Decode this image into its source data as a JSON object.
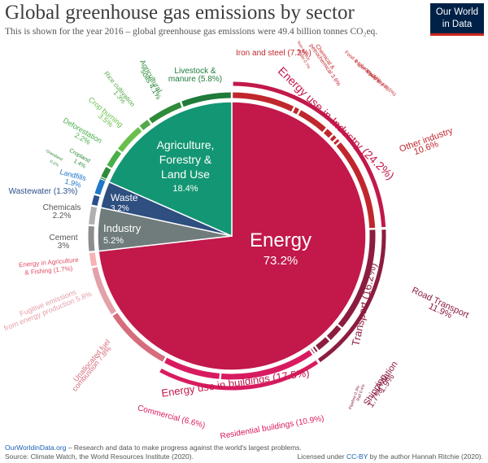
{
  "header": {
    "title": "Global greenhouse gas emissions by sector",
    "subtitle": "This is shown for the year 2016 – global greenhouse gas emissions were 49.4 billion tonnes CO₂eq.",
    "logo_line1": "Our World",
    "logo_line2": "in Data"
  },
  "footer": {
    "site": "OurWorldinData.org",
    "tagline": " – Research and data to make progress against the world's largest problems.",
    "source": "Source: Climate Watch, the World Resources Institute (2020).",
    "license_prefix": "Licensed under ",
    "license": "CC-BY",
    "license_suffix": " by the author Hannah Ritchie (2020)."
  },
  "chart_data": {
    "type": "pie",
    "year": 2016,
    "total": "49.4 billion tonnes CO₂eq",
    "sectors": [
      {
        "name": "Energy",
        "value": 73.2,
        "label": "73.2%",
        "color": "#c2184a"
      },
      {
        "name": "Industry",
        "value": 5.2,
        "label": "5.2%",
        "color": "#707b7c"
      },
      {
        "name": "Waste",
        "value": 3.2,
        "label": "3.2%",
        "color": "#2e4f7f"
      },
      {
        "name": "Agriculture, Forestry & Land Use",
        "value": 18.4,
        "label": "18.4%",
        "color": "#139673"
      }
    ],
    "groups": [
      {
        "name": "Energy use in Industry",
        "value": 24.2,
        "label": "(24.2%)",
        "color": "#c2184a"
      },
      {
        "name": "Transport",
        "value": 16.2,
        "label": "(16.2%)",
        "color": "#8c1d3f"
      },
      {
        "name": "Energy use in buildings",
        "value": 17.5,
        "label": "(17.5%)",
        "color": "#d81b60"
      }
    ],
    "subsectors": [
      {
        "name": "Iron and steel",
        "value": 7.2,
        "label": "(7.2%)",
        "color": "#c0272d"
      },
      {
        "name": "Non-ferrous metals",
        "value": 0.7,
        "label": "0.7%",
        "color": "#c0272d"
      },
      {
        "name": "Chemical & petrochemical",
        "value": 3.6,
        "label": "3.6%",
        "color": "#c0272d"
      },
      {
        "name": "Food & tobacco",
        "value": 1.0,
        "label": "(1%)",
        "color": "#c0272d"
      },
      {
        "name": "Paper & pulp",
        "value": 0.6,
        "label": "(0.6%)",
        "color": "#c0272d"
      },
      {
        "name": "Machinery",
        "value": 0.5,
        "label": "(0.5%)",
        "color": "#c0272d"
      },
      {
        "name": "Other industry",
        "value": 10.6,
        "label": "10.6%",
        "color": "#c0272d"
      },
      {
        "name": "Road Transport",
        "value": 11.9,
        "label": "11.9%",
        "color": "#8c1d3f"
      },
      {
        "name": "Aviation",
        "value": 1.9,
        "label": "1.9%",
        "color": "#8c1d3f"
      },
      {
        "name": "Shipping",
        "value": 1.7,
        "label": "1.7%",
        "color": "#8c1d3f"
      },
      {
        "name": "Rail",
        "value": 0.4,
        "label": "0.4%",
        "color": "#8c1d3f"
      },
      {
        "name": "Pipeline",
        "value": 0.3,
        "label": "0.3%",
        "color": "#8c1d3f"
      },
      {
        "name": "Residential buildings",
        "value": 10.9,
        "label": "(10.9%)",
        "color": "#d81b60"
      },
      {
        "name": "Commercial",
        "value": 6.6,
        "label": "(6.6%)",
        "color": "#d81b60"
      },
      {
        "name": "Unallocated fuel combustion",
        "value": 7.8,
        "label": "7.8%",
        "color": "#d66d7c"
      },
      {
        "name": "Fugitive emissions from energy production",
        "value": 5.8,
        "label": "5.8%",
        "color": "#e4a0a8"
      },
      {
        "name": "Energy in Agriculture & Fishing",
        "value": 1.7,
        "label": "(1.7%)",
        "color": "#f6b3b3"
      },
      {
        "name": "Cement",
        "value": 3.0,
        "label": "3%",
        "color": "#8d8d8d"
      },
      {
        "name": "Chemicals",
        "value": 2.2,
        "label": "2.2%",
        "color": "#b0b0b0"
      },
      {
        "name": "Wastewater",
        "value": 1.3,
        "label": "(1.3%)",
        "color": "#2b4f8a"
      },
      {
        "name": "Landfills",
        "value": 1.9,
        "label": "1.9%",
        "color": "#1f78c8"
      },
      {
        "name": "Grassland",
        "value": 0.1,
        "label": "0.1%",
        "color": "#2e8b3a"
      },
      {
        "name": "Cropland",
        "value": 1.4,
        "label": "1.4%",
        "color": "#2e8b3a"
      },
      {
        "name": "Deforestation",
        "value": 2.2,
        "label": "2.2%",
        "color": "#46b04a"
      },
      {
        "name": "Crop burning",
        "value": 3.5,
        "label": "3.5%",
        "color": "#6abf4b"
      },
      {
        "name": "Rice cultivation",
        "value": 1.3,
        "label": "1.3%",
        "color": "#56a84a"
      },
      {
        "name": "Agricultural soils",
        "value": 4.1,
        "label": "4.1%",
        "color": "#2e8b3a"
      },
      {
        "name": "Livestock & manure",
        "value": 5.8,
        "label": "(5.8%)",
        "color": "#1e7b3a"
      }
    ]
  }
}
